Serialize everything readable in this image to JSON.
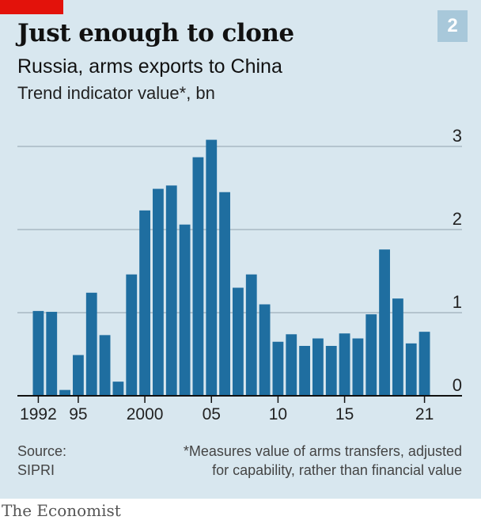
{
  "colors": {
    "panel_bg": "#d8e7ef",
    "bar": "#1f6ea0",
    "gridline": "#a7b9c4",
    "axis": "#111111",
    "brand_red": "#e3120b",
    "badge_bg": "#a8c8da"
  },
  "header": {
    "badge": "2",
    "title": "Just enough to clone",
    "subtitle": "Russia, arms exports to China",
    "units": "Trend indicator value*, bn"
  },
  "footer": {
    "source_label": "Source:",
    "source_name": "SIPRI",
    "footnote_line1": "*Measures value of arms transfers, adjusted",
    "footnote_line2": "for capability, rather than financial value",
    "brand": "The Economist"
  },
  "chart_data": {
    "type": "bar",
    "x": [
      1992,
      1993,
      1994,
      1995,
      1996,
      1997,
      1998,
      1999,
      2000,
      2001,
      2002,
      2003,
      2004,
      2005,
      2006,
      2007,
      2008,
      2009,
      2010,
      2011,
      2012,
      2013,
      2014,
      2015,
      2016,
      2017,
      2018,
      2019,
      2020,
      2021
    ],
    "values": [
      1.02,
      1.01,
      0.07,
      0.49,
      1.24,
      0.73,
      0.17,
      1.46,
      2.23,
      2.49,
      2.53,
      2.06,
      2.87,
      3.08,
      2.45,
      1.3,
      1.46,
      1.1,
      0.65,
      0.74,
      0.6,
      0.69,
      0.6,
      0.75,
      0.69,
      0.98,
      1.76,
      1.17,
      0.63,
      0.77
    ],
    "x_tick_labels": [
      {
        "year": 1992,
        "label": "1992"
      },
      {
        "year": 1995,
        "label": "95"
      },
      {
        "year": 2000,
        "label": "2000"
      },
      {
        "year": 2005,
        "label": "05"
      },
      {
        "year": 2010,
        "label": "10"
      },
      {
        "year": 2015,
        "label": "15"
      },
      {
        "year": 2021,
        "label": "21"
      }
    ],
    "y_ticks": [
      0,
      1,
      2,
      3
    ],
    "y_tick_labels": [
      "0",
      "1",
      "2",
      "3"
    ],
    "ylim": [
      0,
      3.1
    ],
    "grid": true,
    "y_axis_side": "right"
  }
}
